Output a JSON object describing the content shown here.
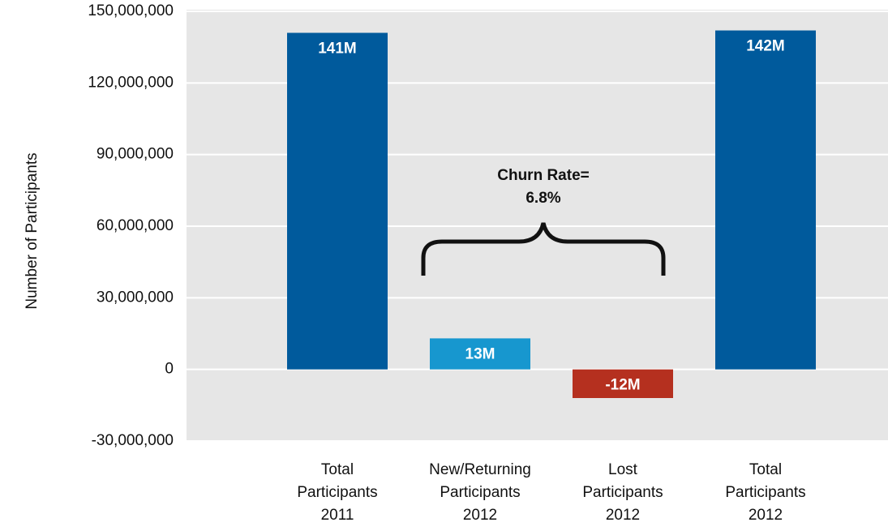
{
  "chart_data": {
    "type": "bar",
    "categories": [
      "Total\nParticipants\n2011",
      "New/Returning\nParticipants\n2012",
      "Lost\nParticipants\n2012",
      "Total\nParticipants\n2012"
    ],
    "values": [
      141000000,
      13000000,
      -12000000,
      142000000
    ],
    "value_labels": [
      "141M",
      "13M",
      "-12M",
      "142M"
    ],
    "colors": [
      "#005a9c",
      "#1797cf",
      "#b5301f",
      "#005a9c"
    ],
    "y_label": "Number of Participants",
    "annotation": "Churn Rate=\n6.8%",
    "ylim": [
      -30000000,
      150000000
    ],
    "yticks": [
      {
        "value": -30000000,
        "label": "-30,000,000"
      },
      0,
      {
        "value": 30000000,
        "label": "30,000,000"
      },
      {
        "value": 60000000,
        "label": "60,000,000"
      },
      {
        "value": 90000000,
        "label": "90,000,000"
      },
      {
        "value": 120000000,
        "label": "120,000,000"
      },
      {
        "value": 150000000,
        "label": "150,000,000"
      }
    ],
    "grid": true
  }
}
